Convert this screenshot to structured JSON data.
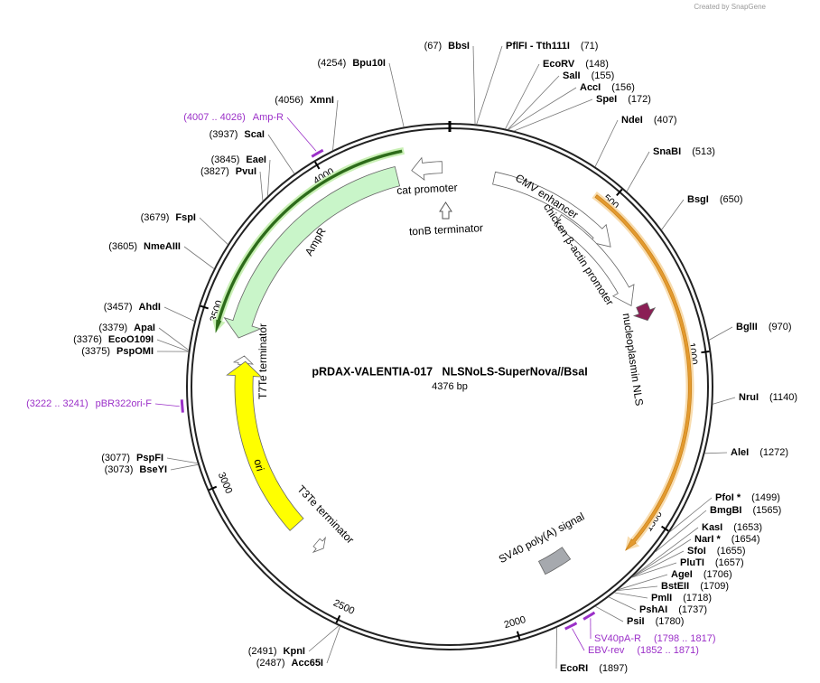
{
  "header": {
    "credit": "Created by SnapGene"
  },
  "map": {
    "title": "pRDAX-VALENTIA-017   NLSNoLS-SuperNova//BsaI",
    "size": {
      "value": 4376,
      "label": "4376 bp"
    },
    "ticks": [
      500,
      1000,
      1500,
      2000,
      2500,
      3000,
      3500,
      4000
    ],
    "sites": [
      {
        "name": "BbsI",
        "position": {
          "value": 67,
          "label": "(67)"
        }
      },
      {
        "name": "PflFI - Tth111I",
        "position": {
          "value": 71,
          "label": "(71)"
        }
      },
      {
        "name": "EcoRV",
        "position": {
          "value": 148,
          "label": "(148)"
        }
      },
      {
        "name": "SalI",
        "position": {
          "value": 155,
          "label": "(155)"
        }
      },
      {
        "name": "AccI",
        "position": {
          "value": 156,
          "label": "(156)"
        }
      },
      {
        "name": "SpeI",
        "position": {
          "value": 172,
          "label": "(172)"
        }
      },
      {
        "name": "NdeI",
        "position": {
          "value": 407,
          "label": "(407)"
        }
      },
      {
        "name": "SnaBI",
        "position": {
          "value": 513,
          "label": "(513)"
        }
      },
      {
        "name": "BsgI",
        "position": {
          "value": 650,
          "label": "(650)"
        }
      },
      {
        "name": "BglII",
        "position": {
          "value": 970,
          "label": "(970)"
        }
      },
      {
        "name": "NruI",
        "position": {
          "value": 1140,
          "label": "(1140)"
        }
      },
      {
        "name": "AleI",
        "position": {
          "value": 1272,
          "label": "(1272)"
        }
      },
      {
        "name": "PfoI *",
        "position": {
          "value": 1499,
          "label": "(1499)"
        }
      },
      {
        "name": "BmgBI",
        "position": {
          "value": 1565,
          "label": "(1565)"
        }
      },
      {
        "name": "KasI",
        "position": {
          "value": 1653,
          "label": "(1653)"
        }
      },
      {
        "name": "NarI *",
        "position": {
          "value": 1654,
          "label": "(1654)"
        }
      },
      {
        "name": "SfoI",
        "position": {
          "value": 1655,
          "label": "(1655)"
        }
      },
      {
        "name": "PluTI",
        "position": {
          "value": 1657,
          "label": "(1657)"
        }
      },
      {
        "name": "AgeI",
        "position": {
          "value": 1706,
          "label": "(1706)"
        }
      },
      {
        "name": "BstEII",
        "position": {
          "value": 1709,
          "label": "(1709)"
        }
      },
      {
        "name": "PmlI",
        "position": {
          "value": 1718,
          "label": "(1718)"
        }
      },
      {
        "name": "PshAI",
        "position": {
          "value": 1737,
          "label": "(1737)"
        }
      },
      {
        "name": "PsiI",
        "position": {
          "value": 1780,
          "label": "(1780)"
        }
      },
      {
        "name": "EcoRI",
        "position": {
          "value": 1897,
          "label": "(1897)"
        }
      },
      {
        "name": "Bpu10I",
        "position": {
          "value": 4254,
          "label": "(4254)"
        }
      },
      {
        "name": "XmnI",
        "position": {
          "value": 4056,
          "label": "(4056)"
        }
      },
      {
        "name": "ScaI",
        "position": {
          "value": 3937,
          "label": "(3937)"
        }
      },
      {
        "name": "EaeI",
        "position": {
          "value": 3845,
          "label": "(3845)"
        }
      },
      {
        "name": "PvuI",
        "position": {
          "value": 3827,
          "label": "(3827)"
        }
      },
      {
        "name": "FspI",
        "position": {
          "value": 3679,
          "label": "(3679)"
        }
      },
      {
        "name": "NmeAIII",
        "position": {
          "value": 3605,
          "label": "(3605)"
        }
      },
      {
        "name": "AhdI",
        "position": {
          "value": 3457,
          "label": "(3457)"
        }
      },
      {
        "name": "ApaI",
        "position": {
          "value": 3379,
          "label": "(3379)"
        }
      },
      {
        "name": "EcoO109I",
        "position": {
          "value": 3376,
          "label": "(3376)"
        }
      },
      {
        "name": "PspOMI",
        "position": {
          "value": 3375,
          "label": "(3375)"
        }
      },
      {
        "name": "PspFI",
        "position": {
          "value": 3077,
          "label": "(3077)"
        }
      },
      {
        "name": "BseYI",
        "position": {
          "value": 3073,
          "label": "(3073)"
        }
      },
      {
        "name": "KpnI",
        "position": {
          "value": 2491,
          "label": "(2491)"
        }
      },
      {
        "name": "Acc65I",
        "position": {
          "value": 2487,
          "label": "(2487)"
        }
      }
    ],
    "primers": [
      {
        "name": "Amp-R",
        "range": "(4007 .. 4026)",
        "start": 4007,
        "end": 4026
      },
      {
        "name": "pBR322ori-F",
        "range": "(3222 .. 3241)",
        "start": 3222,
        "end": 3241
      },
      {
        "name": "SV40pA-R",
        "range": "(1798 .. 1817)",
        "start": 1798,
        "end": 1817
      },
      {
        "name": "EBV-rev",
        "range": "(1852 .. 1871)",
        "start": 1852,
        "end": 1871
      }
    ],
    "features": [
      "CMV enhancer",
      "chicken β-actin promoter",
      "nucleoplasmin NLS",
      "SV40 poly(A) signal",
      "cat promoter",
      "tonB terminator",
      "AmpR",
      "T7Te terminator",
      "ori",
      "T3Te terminator"
    ]
  }
}
